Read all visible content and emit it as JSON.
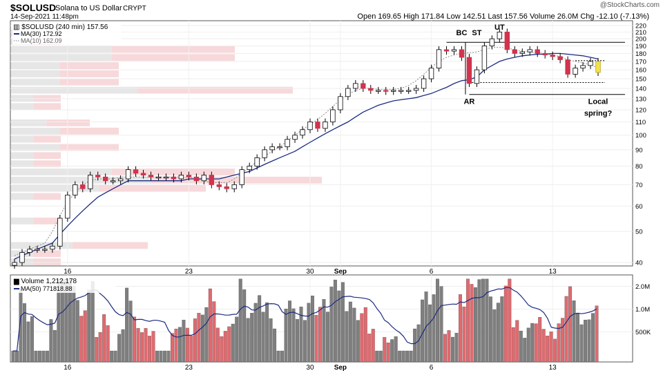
{
  "header": {
    "symbol": "$SOLUSD",
    "name": "Solana to US Dollar",
    "exchange": "CRYPT",
    "datetime": "14-Sep-2021 11:48pm",
    "ohlc": "Open 169.65  High 171.84  Low 142.51  Last 157.56  Volume 26.0M  Chg -12.10 (-7.13%)",
    "watermark": "@StockCharts.com"
  },
  "legend": {
    "price": "$SOLUSD (240 min) 157.56",
    "ma30": "MA(30) 172.92",
    "ma10": "MA(10) 162.09",
    "volume": "Volume 1,212,178",
    "vol_ma": "MA(50) 771818.88"
  },
  "annotations": [
    {
      "text": "BC",
      "date_index": 59
    },
    {
      "text": "ST",
      "date_index": 61
    },
    {
      "text": "UT",
      "date_index": 64
    },
    {
      "text": "AR",
      "date_index": 60
    },
    {
      "text": "Local",
      "date_index": 77
    },
    {
      "text": "spring?",
      "date_index": 77
    }
  ],
  "colors": {
    "up": "#ffffff",
    "down": "#d2334d",
    "ma30": "#1b2a80",
    "ma10": "#888888",
    "vol_up": "#7f7f7f",
    "vol_down": "#e06a6f",
    "vbp_gray": "#e6e6e6",
    "vbp_red": "#f7d9db",
    "last": "#f4e14e"
  },
  "chart_data": [
    {
      "type": "candlestick",
      "title": "$SOLUSD (240 min)",
      "y_scale": "log",
      "ylim": [
        40,
        220
      ],
      "y_ticks": [
        40,
        50,
        60,
        70,
        80,
        90,
        100,
        110,
        120,
        130,
        140,
        150,
        160,
        170,
        180,
        190,
        200,
        210,
        220
      ],
      "x_tick_labels": [
        {
          "label": "16",
          "date_index": 7
        },
        {
          "label": "23",
          "date_index": 23
        },
        {
          "label": "30",
          "date_index": 39
        },
        {
          "label": "Sep",
          "date_index": 43
        },
        {
          "label": "6",
          "date_index": 55
        },
        {
          "label": "13",
          "date_index": 71
        }
      ],
      "close": [
        40,
        43,
        44,
        44,
        44,
        45,
        55,
        65,
        70,
        68,
        75,
        74,
        72,
        72,
        73,
        78,
        76,
        75,
        74,
        74,
        74,
        73,
        75,
        74,
        72,
        75,
        70,
        69,
        68,
        70,
        78,
        80,
        85,
        90,
        92,
        92,
        97,
        100,
        104,
        110,
        105,
        110,
        120,
        132,
        140,
        145,
        140,
        138,
        138,
        137,
        138,
        138,
        138,
        140,
        150,
        162,
        185,
        183,
        185,
        175,
        145,
        160,
        190,
        200,
        210,
        185,
        180,
        182,
        185,
        180,
        178,
        176,
        172,
        155,
        162,
        165,
        170,
        157
      ],
      "ma30": [
        41,
        42,
        43,
        44,
        45,
        46,
        49,
        52,
        55,
        58,
        61,
        64,
        66,
        68,
        70,
        72,
        72,
        72,
        72,
        72,
        72,
        72,
        72,
        73,
        73,
        73,
        73,
        73,
        74,
        75,
        76,
        77,
        79,
        81,
        83,
        85,
        87,
        89,
        92,
        95,
        98,
        101,
        104,
        107,
        110,
        114,
        118,
        121,
        124,
        126,
        128,
        129,
        130,
        131,
        133,
        135,
        138,
        141,
        145,
        148,
        149,
        152,
        160,
        165,
        170,
        173,
        175,
        177,
        178,
        179,
        179,
        180,
        180,
        179,
        178,
        177,
        175,
        173
      ],
      "ma10": [
        42,
        43,
        44,
        45,
        46,
        50,
        56,
        62,
        66,
        70,
        72,
        73,
        73,
        73,
        74,
        74,
        74,
        74,
        74,
        74,
        74,
        74,
        74,
        74,
        73,
        72,
        71,
        71,
        71,
        73,
        76,
        79,
        83,
        86,
        89,
        92,
        96,
        100,
        104,
        108,
        112,
        117,
        123,
        129,
        134,
        138,
        140,
        140,
        139,
        139,
        139,
        140,
        143,
        148,
        155,
        163,
        170,
        175,
        178,
        180,
        181,
        182,
        185,
        188,
        188,
        187,
        185,
        183,
        182,
        181,
        180,
        178,
        176,
        172,
        170,
        168,
        166,
        162
      ],
      "reference_lines": [
        {
          "value": 195,
          "style": "solid"
        },
        {
          "value": 134,
          "style": "solid"
        },
        {
          "value": 146,
          "style": "dotted"
        },
        {
          "value": 171,
          "style": "dotted"
        }
      ],
      "volume_by_price": "horizontal gray/red bars at left edge"
    },
    {
      "type": "bar",
      "title": "Volume",
      "y_scale": "log",
      "y_ticks": [
        "500K",
        "1.0M",
        "2.0M"
      ],
      "y_tick_values": [
        500000,
        1000000,
        2000000
      ],
      "ylim": [
        200000,
        2600000
      ]
    }
  ]
}
